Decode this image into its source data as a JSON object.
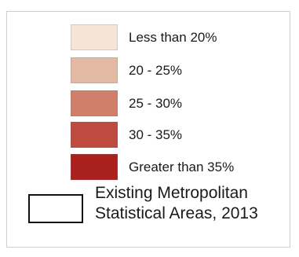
{
  "legend": {
    "classes": [
      {
        "label": "Less than 20%",
        "color": "#f6e5d6"
      },
      {
        "label": "20 - 25%",
        "color": "#e2b9a3"
      },
      {
        "label": "25 - 30%",
        "color": "#d0806a"
      },
      {
        "label": "30 - 35%",
        "color": "#be4b40"
      },
      {
        "label": "Greater than 35%",
        "color": "#a9201f"
      }
    ],
    "boundary": {
      "line1": "Existing Metropolitan",
      "line2": "Statistical Areas, 2013",
      "border_color": "#111111"
    }
  }
}
